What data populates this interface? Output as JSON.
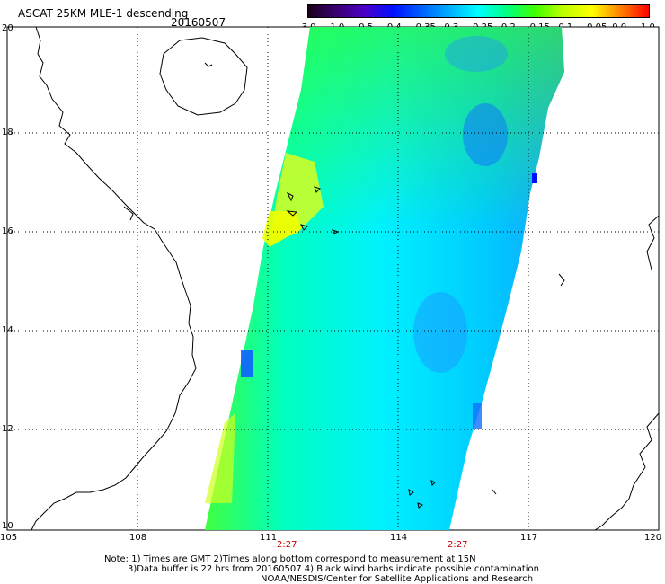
{
  "title": "ASCAT 25KM MLE-1 descending",
  "date": "20160507",
  "colorbar": {
    "ticks": [
      "-3.0",
      "-1.0",
      "-0.5",
      "-0.4",
      "-0.35",
      "-0.3",
      "-0.25",
      "-0.2",
      "-0.15",
      "-0.1",
      "-0.05",
      "0.0",
      "1.0"
    ],
    "colors": [
      "#1a001a",
      "#3a0070",
      "#4b00c8",
      "#0010ff",
      "#0060ff",
      "#00b0ff",
      "#00ffff",
      "#00ff80",
      "#40ff00",
      "#c0ff00",
      "#ffff00",
      "#ff8000",
      "#ff0000"
    ]
  },
  "lat_ticks": [
    "20",
    "18",
    "16",
    "14",
    "12",
    "10"
  ],
  "lon_ticks": [
    "105",
    "108",
    "111",
    "114",
    "117",
    "120"
  ],
  "pass_times": [
    "2:27",
    "2:27"
  ],
  "time_color": "#cc0000",
  "note": {
    "line1": "Note: 1) Times are GMT 2)Times along bottom correspond to measurement at 15N",
    "line2": "3)Data buffer is 22 hrs from 20160507 4) Black wind barbs indicate possible contamination",
    "line3": "NOAA/NESDIS/Center for Satellite Applications and Research"
  }
}
